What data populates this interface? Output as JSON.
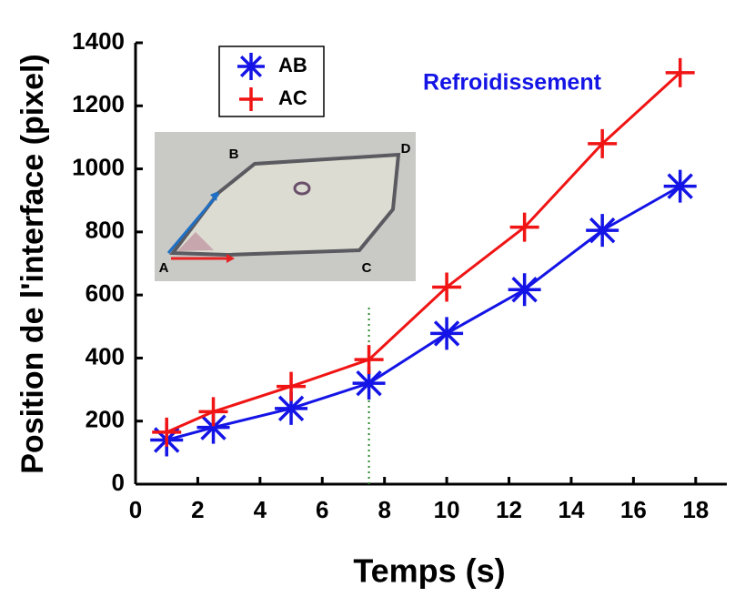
{
  "chart_data": {
    "type": "line",
    "x_label": "Temps (s)",
    "y_label": "Position de l'interface (pixel)",
    "annotation": "Refroidissement",
    "inset_labels": [
      "A",
      "B",
      "C",
      "D"
    ],
    "x": [
      1,
      2.5,
      5,
      7.5,
      10,
      12.5,
      15,
      17.5
    ],
    "series": [
      {
        "name": "AB",
        "color": "#1414e6",
        "marker": "star",
        "values": [
          140,
          180,
          240,
          320,
          478,
          617,
          805,
          945
        ]
      },
      {
        "name": "AC",
        "color": "#f01414",
        "marker": "plus",
        "values": [
          165,
          230,
          310,
          395,
          625,
          815,
          1080,
          1305
        ]
      }
    ],
    "vline": {
      "x": 7.5,
      "color": "#2a8a2a"
    },
    "xlim": [
      0,
      19
    ],
    "xticks": [
      0,
      2,
      4,
      6,
      8,
      10,
      12,
      14,
      16,
      18
    ],
    "ylim": [
      0,
      1400
    ],
    "yticks": [
      0,
      200,
      400,
      600,
      800,
      1000,
      1200,
      1400
    ],
    "grid": false
  }
}
